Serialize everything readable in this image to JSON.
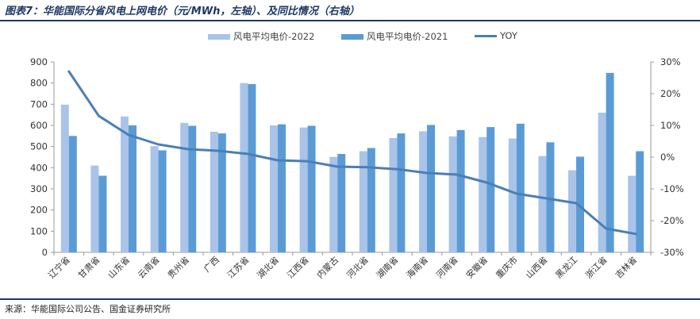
{
  "header": {
    "title": "图表7：华能国际分省风电上网电价（元/MWh，左轴）、及同比情况（右轴）"
  },
  "footer": {
    "source": "来源：华能国际公司公告、国金证券研究所"
  },
  "legend": [
    {
      "name": "风电平均电价-2022",
      "color": "#a9c4e8",
      "kind": "bar"
    },
    {
      "name": "风电平均电价-2021",
      "color": "#5b9bd5",
      "kind": "bar"
    },
    {
      "name": "YOY",
      "color": "#4a7fb5",
      "kind": "line"
    }
  ],
  "chart_data": {
    "type": "bar",
    "categories": [
      "辽宁省",
      "甘肃省",
      "山东省",
      "云南省",
      "贵州省",
      "广西",
      "江苏省",
      "湖北省",
      "江西省",
      "内蒙古",
      "河北省",
      "湖南省",
      "海南省",
      "河南省",
      "安徽省",
      "重庆市",
      "山西省",
      "黑龙江",
      "浙江省",
      "吉林省"
    ],
    "series": [
      {
        "name": "风电平均电价-2022",
        "axis": "left",
        "type": "bar",
        "color": "#a9c4e8",
        "values": [
          698,
          410,
          642,
          502,
          612,
          570,
          800,
          600,
          590,
          451,
          478,
          540,
          572,
          548,
          545,
          538,
          455,
          388,
          660,
          362
        ]
      },
      {
        "name": "风电平均电价-2021",
        "axis": "left",
        "type": "bar",
        "color": "#5b9bd5",
        "values": [
          550,
          362,
          600,
          482,
          598,
          562,
          795,
          605,
          598,
          465,
          493,
          562,
          602,
          578,
          592,
          608,
          520,
          452,
          848,
          478
        ]
      },
      {
        "name": "YOY",
        "axis": "right",
        "type": "line",
        "color": "#4a7fb5",
        "values": [
          27,
          13,
          7,
          4,
          2.5,
          2,
          1,
          -1,
          -1.3,
          -3,
          -3.2,
          -3.8,
          -5,
          -5.5,
          -8,
          -11.5,
          -13,
          -14.5,
          -22.5,
          -24.2
        ]
      }
    ],
    "y_left": {
      "min": 0,
      "max": 900,
      "ticks": [
        "0",
        "100",
        "200",
        "300",
        "400",
        "500",
        "600",
        "700",
        "800",
        "900"
      ]
    },
    "y_right": {
      "min": -30,
      "max": 30,
      "ticks": [
        "-30%",
        "-20%",
        "-10%",
        "0%",
        "10%",
        "20%",
        "30%"
      ]
    },
    "grid": false,
    "legend_position": "top"
  }
}
